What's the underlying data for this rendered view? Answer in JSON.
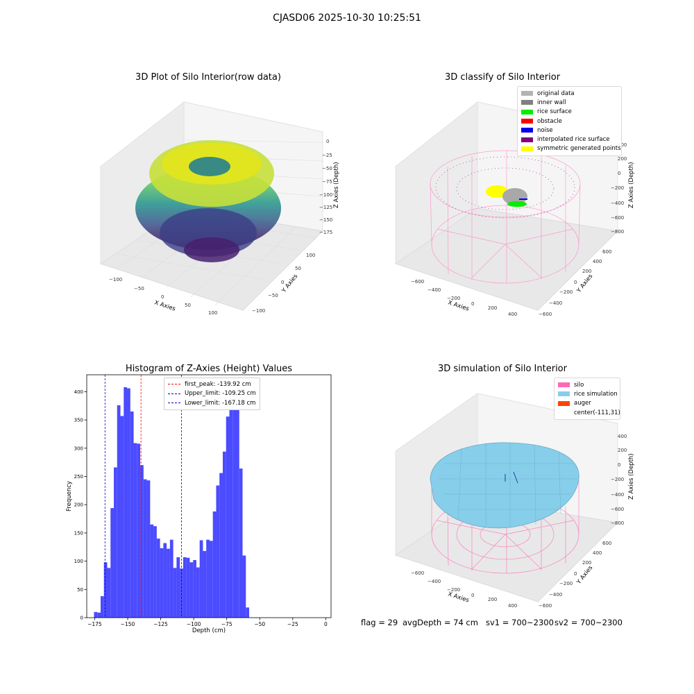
{
  "suptitle": "CJASD06 2025-10-30 10:25:51",
  "panels": {
    "raw": {
      "title": "3D Plot of Silo Interior(row data)",
      "xlabel": "X Axies",
      "ylabel": "Y Axies",
      "zlabel": "Z Axies (Depth)",
      "xticks": [
        "−100",
        "−50",
        "0",
        "50",
        "100"
      ],
      "yticks": [
        "100",
        "50",
        "0",
        "−50",
        "−100"
      ],
      "zticks": [
        "0",
        "−25",
        "−50",
        "−75",
        "−100",
        "−125",
        "−150",
        "−175"
      ]
    },
    "classify": {
      "title": "3D classify of Silo Interior",
      "xlabel": "X Axies",
      "ylabel": "Y Axies",
      "zlabel": "Z Axies (Depth)",
      "xticks": [
        "−600",
        "−400",
        "−200",
        "0",
        "200",
        "400"
      ],
      "yticks": [
        "600",
        "400",
        "200",
        "0",
        "−200",
        "−400",
        "−600"
      ],
      "zticks": [
        "400",
        "200",
        "0",
        "−200",
        "−400",
        "−600",
        "−800"
      ],
      "legend": [
        {
          "label": "original data",
          "color": "#b3b3b3"
        },
        {
          "label": "inner wall",
          "color": "#808080"
        },
        {
          "label": "rice surface",
          "color": "#00ee00"
        },
        {
          "label": "obstacle",
          "color": "#ff0000"
        },
        {
          "label": "noise",
          "color": "#0000ee"
        },
        {
          "label": "interpolated rice surface",
          "color": "#800080"
        },
        {
          "label": "symmetric generated points",
          "color": "#ffff00"
        }
      ]
    },
    "simulation": {
      "title": "3D simulation of Silo Interior",
      "xlabel": "X Axies",
      "ylabel": "Y Axies",
      "zlabel": "Z Axies (Depth)",
      "xticks": [
        "−600",
        "−400",
        "−200",
        "0",
        "200",
        "400"
      ],
      "yticks": [
        "600",
        "400",
        "200",
        "0",
        "−200",
        "−400",
        "−600"
      ],
      "zticks": [
        "400",
        "200",
        "0",
        "−200",
        "−400",
        "−600",
        "−800"
      ],
      "legend": [
        {
          "label": "silo",
          "color": "#ff69b4"
        },
        {
          "label": "rice simulation",
          "color": "#87ceeb"
        },
        {
          "label": "auger",
          "color": "#ff4500"
        },
        {
          "label": "center(-111,31)",
          "color": "#ffffff"
        }
      ]
    }
  },
  "status_line": {
    "flag": "flag = 29",
    "avg": "avgDepth = 74 cm",
    "sv1": "sv1 = 700~2300",
    "sv2": "sv2 = 700~2300"
  },
  "chart_data": {
    "type": "bar",
    "title": "Histogram of Z-Axies (Height) Values",
    "xlabel": "Depth (cm)",
    "ylabel": "Frequency",
    "xlim": [
      -181,
      4
    ],
    "ylim": [
      0,
      430
    ],
    "xticks": [
      -175,
      -150,
      -125,
      -100,
      -75,
      -50,
      -25,
      0
    ],
    "xtick_labels": [
      "−175",
      "−150",
      "−125",
      "−100",
      "−75",
      "−50",
      "−25",
      "0"
    ],
    "yticks": [
      0,
      50,
      100,
      150,
      200,
      250,
      300,
      350,
      400
    ],
    "bin_start": -175.5,
    "bin_width": 2.5,
    "values": [
      10,
      9,
      38,
      98,
      88,
      194,
      266,
      376,
      357,
      408,
      406,
      365,
      309,
      308,
      270,
      245,
      243,
      165,
      162,
      140,
      123,
      132,
      122,
      138,
      88,
      107,
      87,
      107,
      106,
      98,
      102,
      89,
      137,
      118,
      138,
      136,
      188,
      234,
      256,
      294,
      356,
      373,
      393,
      384,
      264,
      110,
      18
    ],
    "bar_color": "#4b4bff",
    "reference_lines": [
      {
        "label": "first_peak: -139.92 cm",
        "x": -139.92,
        "color": "#ff0000"
      },
      {
        "label": "Upper_limit: -109.25 cm",
        "x": -109.25,
        "color": "#0000cc"
      },
      {
        "label": "Lower_limit: -167.18 cm",
        "x": -167.18,
        "color": "#0000cc"
      }
    ]
  }
}
